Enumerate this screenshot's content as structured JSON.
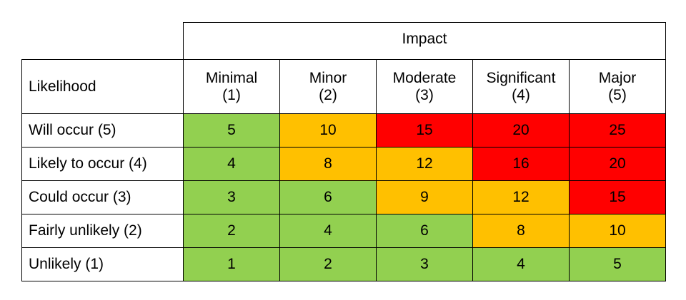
{
  "impact_header": "Impact",
  "likelihood_header": "Likelihood",
  "impact_levels": [
    {
      "name": "Minimal",
      "score": "(1)"
    },
    {
      "name": "Minor",
      "score": "(2)"
    },
    {
      "name": "Moderate",
      "score": "(3)"
    },
    {
      "name": "Significant",
      "score": "(4)"
    },
    {
      "name": "Major",
      "score": "(5)"
    }
  ],
  "rows": [
    {
      "label": "Will occur (5)",
      "values": [
        "5",
        "10",
        "15",
        "20",
        "25"
      ],
      "levels": [
        "low",
        "medium",
        "high",
        "high",
        "high"
      ]
    },
    {
      "label": "Likely to occur (4)",
      "values": [
        "4",
        "8",
        "12",
        "16",
        "20"
      ],
      "levels": [
        "low",
        "medium",
        "medium",
        "high",
        "high"
      ]
    },
    {
      "label": "Could occur (3)",
      "values": [
        "3",
        "6",
        "9",
        "12",
        "15"
      ],
      "levels": [
        "low",
        "low",
        "medium",
        "medium",
        "high"
      ]
    },
    {
      "label": "Fairly unlikely (2)",
      "values": [
        "2",
        "4",
        "6",
        "8",
        "10"
      ],
      "levels": [
        "low",
        "low",
        "low",
        "medium",
        "medium"
      ]
    },
    {
      "label": "Unlikely (1)",
      "values": [
        "1",
        "2",
        "3",
        "4",
        "5"
      ],
      "levels": [
        "low",
        "low",
        "low",
        "low",
        "low"
      ]
    }
  ],
  "colors": {
    "low": "#92d050",
    "medium": "#ffc000",
    "high": "#ff0000"
  }
}
